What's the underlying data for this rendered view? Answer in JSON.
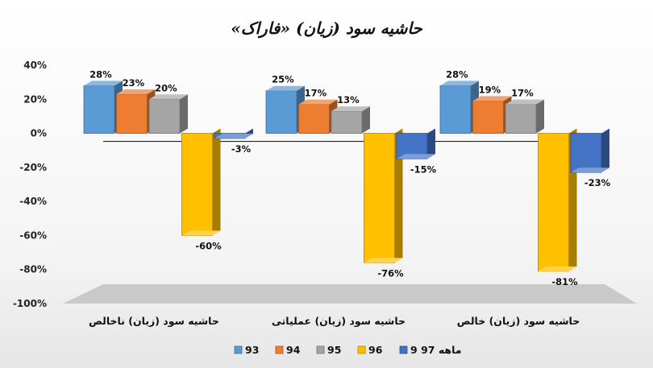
{
  "chart_data": {
    "type": "bar",
    "title": "حاشیه سود (زیان) «فاراک»",
    "categories": [
      "حاشیه سود (زیان) ناخالص",
      "حاشیه سود (زیان) عملیاتی",
      "حاشیه سود (زیان) خالص"
    ],
    "series": [
      {
        "name": "93",
        "color": "#5b9bd5",
        "values": [
          28,
          25,
          28
        ]
      },
      {
        "name": "94",
        "color": "#ed7d31",
        "values": [
          23,
          17,
          19
        ]
      },
      {
        "name": "95",
        "color": "#a5a5a5",
        "values": [
          20,
          13,
          17
        ]
      },
      {
        "name": "96",
        "color": "#ffc000",
        "values": [
          -60,
          -76,
          -81
        ]
      },
      {
        "name": "9 ماهه 97",
        "color": "#4472c4",
        "values": [
          -3,
          -15,
          -23
        ]
      }
    ],
    "data_labels": [
      [
        "28%",
        "25%",
        "28%"
      ],
      [
        "23%",
        "17%",
        "19%"
      ],
      [
        "20%",
        "13%",
        "17%"
      ],
      [
        "-60%",
        "-76%",
        "-81%"
      ],
      [
        "-3%",
        "-15%",
        "-23%"
      ]
    ],
    "y_ticks": [
      "40%",
      "20%",
      "0%",
      "-20%",
      "-40%",
      "-60%",
      "-80%",
      "-100%"
    ],
    "ylim": [
      -100,
      40
    ],
    "grid": false,
    "legend_position": "bottom",
    "style": "3d-column"
  }
}
